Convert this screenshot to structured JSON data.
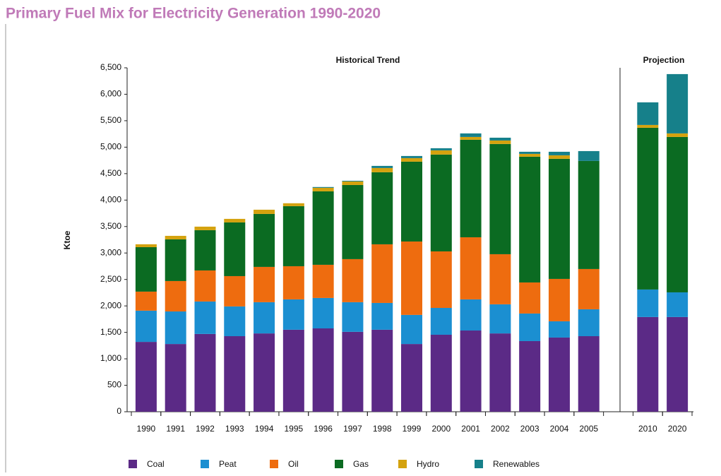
{
  "chart_data": {
    "type": "stacked_bar",
    "title": "Primary Fuel Mix for Electricity Generation 1990-2020",
    "y_label": "Ktoe",
    "annotations": [
      "Historical Trend",
      "Projection"
    ],
    "categories": [
      "1990",
      "1991",
      "1992",
      "1993",
      "1994",
      "1995",
      "1996",
      "1997",
      "1998",
      "1999",
      "2000",
      "2001",
      "2002",
      "2003",
      "2004",
      "2005",
      null,
      "2010",
      "2020"
    ],
    "series": [
      {
        "name": "Coal",
        "color": "#5b2a86",
        "values": [
          1320,
          1280,
          1470,
          1428,
          1480,
          1550,
          1575,
          1510,
          1550,
          1280,
          1455,
          1535,
          1480,
          1335,
          1402,
          1428,
          null,
          1790,
          1790
        ]
      },
      {
        "name": "Peat",
        "color": "#1b8fd1",
        "values": [
          590,
          615,
          613,
          562,
          590,
          573,
          575,
          560,
          506,
          550,
          507,
          588,
          550,
          521,
          307,
          508,
          null,
          520,
          466
        ]
      },
      {
        "name": "Oil",
        "color": "#ee6c0f",
        "values": [
          360,
          575,
          587,
          573,
          667,
          627,
          627,
          814,
          1108,
          1387,
          1068,
          1174,
          947,
          587,
          801,
          761,
          null,
          0,
          0
        ]
      },
      {
        "name": "Gas",
        "color": "#0b6b22",
        "values": [
          840,
          787,
          761,
          1015,
          1001,
          1135,
          1388,
          1401,
          1362,
          1509,
          1830,
          1843,
          2083,
          2377,
          2270,
          2043,
          null,
          3057,
          2937
        ]
      },
      {
        "name": "Hydro",
        "color": "#d4a20e",
        "values": [
          55,
          67,
          67,
          67,
          80,
          55,
          67,
          67,
          80,
          67,
          80,
          53,
          66,
          53,
          66,
          0,
          null,
          53,
          67
        ]
      },
      {
        "name": "Renewables",
        "color": "#16808a",
        "values": [
          0,
          0,
          0,
          0,
          0,
          0,
          15,
          13,
          40,
          40,
          40,
          67,
          53,
          40,
          67,
          186,
          null,
          427,
          1121
        ]
      }
    ],
    "ylim": [
      0,
      6500
    ],
    "yticks": [
      0,
      500,
      {
        "value": 1000,
        "label": "1,000"
      },
      {
        "value": 1500,
        "label": "1,500"
      },
      {
        "value": 2000,
        "label": "2,000"
      },
      {
        "value": 2500,
        "label": "2,500"
      },
      {
        "value": 3000,
        "label": "3,000"
      },
      {
        "value": 3500,
        "label": "3,500"
      },
      {
        "value": 4000,
        "label": "4,000"
      },
      {
        "value": 4500,
        "label": "4,500"
      },
      {
        "value": 5000,
        "label": "5,000"
      },
      {
        "value": 5500,
        "label": "5,500"
      },
      {
        "value": 6000,
        "label": "6,000"
      },
      {
        "value": 6500,
        "label": "6,500"
      }
    ],
    "grid": false,
    "legend": "bottom"
  }
}
